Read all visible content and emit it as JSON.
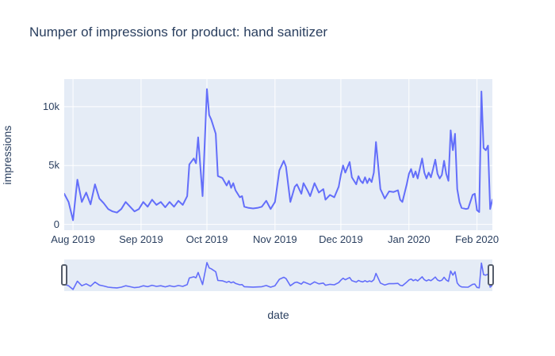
{
  "title": "Numper of impressions for product: hand sanitizer",
  "colors": {
    "line": "#636EFA",
    "plot_background": "#E5ECF6",
    "gridline": "#FFFFFF",
    "text": "#2A3F5F",
    "slider_handle_fill": "#FFFFFF",
    "slider_handle_border": "#555D6B"
  },
  "chart_data": {
    "type": "line",
    "title": "Numper of impressions for product: hand sanitizer",
    "xlabel": "date",
    "ylabel": "impressions",
    "legend": false,
    "grid": true,
    "rangeslider": true,
    "x_range": [
      "2019-07-28",
      "2020-02-08"
    ],
    "y_range": [
      -500,
      12350
    ],
    "yticks": [
      {
        "label": "0",
        "value": 0
      },
      {
        "label": "5k",
        "value": 5000
      },
      {
        "label": "10k",
        "value": 10000
      }
    ],
    "xticks": [
      {
        "label": "Aug 2019",
        "date": "2019-08-01"
      },
      {
        "label": "Sep 2019",
        "date": "2019-09-01"
      },
      {
        "label": "Oct 2019",
        "date": "2019-10-01"
      },
      {
        "label": "Nov 2019",
        "date": "2019-11-01"
      },
      {
        "label": "Dec 2019",
        "date": "2019-12-01"
      },
      {
        "label": "Jan 2020",
        "date": "2020-01-01"
      },
      {
        "label": "Feb 2020",
        "date": "2020-02-01"
      }
    ],
    "x": [
      "2019-07-28",
      "2019-07-30",
      "2019-08-01",
      "2019-08-03",
      "2019-08-05",
      "2019-08-07",
      "2019-08-09",
      "2019-08-11",
      "2019-08-13",
      "2019-08-15",
      "2019-08-17",
      "2019-08-19",
      "2019-08-21",
      "2019-08-23",
      "2019-08-25",
      "2019-08-27",
      "2019-08-29",
      "2019-08-31",
      "2019-09-02",
      "2019-09-04",
      "2019-09-06",
      "2019-09-08",
      "2019-09-10",
      "2019-09-12",
      "2019-09-14",
      "2019-09-16",
      "2019-09-18",
      "2019-09-20",
      "2019-09-22",
      "2019-09-23",
      "2019-09-25",
      "2019-09-26",
      "2019-09-27",
      "2019-09-29",
      "2019-10-01",
      "2019-10-02",
      "2019-10-03",
      "2019-10-04",
      "2019-10-05",
      "2019-10-06",
      "2019-10-08",
      "2019-10-10",
      "2019-10-11",
      "2019-10-12",
      "2019-10-13",
      "2019-10-14",
      "2019-10-16",
      "2019-10-17",
      "2019-10-18",
      "2019-10-20",
      "2019-10-22",
      "2019-10-24",
      "2019-10-26",
      "2019-10-28",
      "2019-10-30",
      "2019-11-01",
      "2019-11-03",
      "2019-11-05",
      "2019-11-06",
      "2019-11-08",
      "2019-11-10",
      "2019-11-11",
      "2019-11-13",
      "2019-11-14",
      "2019-11-16",
      "2019-11-17",
      "2019-11-19",
      "2019-11-21",
      "2019-11-23",
      "2019-11-24",
      "2019-11-26",
      "2019-11-28",
      "2019-11-30",
      "2019-12-01",
      "2019-12-02",
      "2019-12-03",
      "2019-12-05",
      "2019-12-06",
      "2019-12-08",
      "2019-12-09",
      "2019-12-10",
      "2019-12-11",
      "2019-12-12",
      "2019-12-13",
      "2019-12-14",
      "2019-12-15",
      "2019-12-16",
      "2019-12-17",
      "2019-12-19",
      "2019-12-21",
      "2019-12-23",
      "2019-12-25",
      "2019-12-27",
      "2019-12-28",
      "2019-12-29",
      "2019-12-31",
      "2020-01-01",
      "2020-01-02",
      "2020-01-03",
      "2020-01-04",
      "2020-01-05",
      "2020-01-07",
      "2020-01-08",
      "2020-01-09",
      "2020-01-10",
      "2020-01-11",
      "2020-01-12",
      "2020-01-13",
      "2020-01-14",
      "2020-01-15",
      "2020-01-16",
      "2020-01-17",
      "2020-01-18",
      "2020-01-19",
      "2020-01-20",
      "2020-01-21",
      "2020-01-22",
      "2020-01-23",
      "2020-01-24",
      "2020-01-25",
      "2020-01-27",
      "2020-01-28",
      "2020-01-30",
      "2020-01-31",
      "2020-02-01",
      "2020-02-02",
      "2020-02-03",
      "2020-02-04",
      "2020-02-05",
      "2020-02-06",
      "2020-02-07",
      "2020-02-08"
    ],
    "y": [
      2600,
      1900,
      350,
      3800,
      1900,
      2700,
      1700,
      3400,
      2200,
      1800,
      1300,
      1100,
      1000,
      1300,
      1900,
      1500,
      1100,
      1300,
      1900,
      1500,
      2100,
      1650,
      1900,
      1450,
      1900,
      1500,
      2000,
      1650,
      2400,
      5100,
      5600,
      5200,
      7400,
      2400,
      11500,
      9300,
      8900,
      8300,
      7700,
      4100,
      3950,
      3300,
      3700,
      3100,
      3500,
      2900,
      2300,
      2400,
      1500,
      1400,
      1350,
      1400,
      1500,
      2000,
      1300,
      1900,
      4600,
      5400,
      4900,
      1900,
      3200,
      3400,
      2600,
      3500,
      2800,
      2400,
      3500,
      2700,
      3000,
      2100,
      2500,
      2300,
      3200,
      4200,
      5000,
      4400,
      5300,
      4000,
      3400,
      4100,
      3700,
      3500,
      4000,
      3500,
      3900,
      3600,
      4400,
      7000,
      3000,
      2200,
      2800,
      2750,
      2900,
      2100,
      1900,
      3400,
      4300,
      4700,
      4000,
      4500,
      3900,
      5600,
      4400,
      3900,
      4400,
      4000,
      4700,
      5500,
      4300,
      3900,
      4200,
      5400,
      4300,
      3700,
      8000,
      6300,
      7700,
      3000,
      1900,
      1400,
      1300,
      1350,
      2500,
      2600,
      1200,
      1050,
      11300,
      6500,
      6300,
      6700,
      1300,
      2100
    ]
  }
}
